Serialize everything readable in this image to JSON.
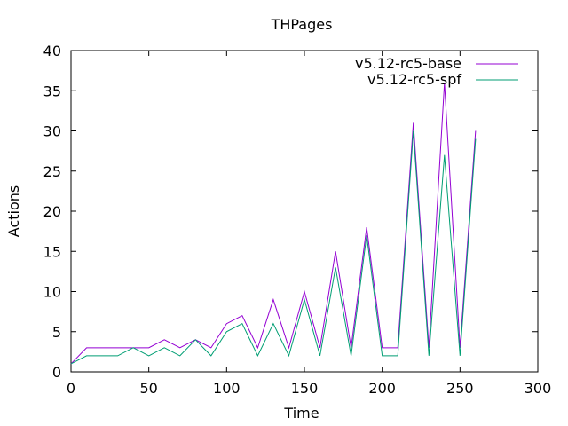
{
  "chart_data": {
    "type": "line",
    "title": "THPages",
    "xlabel": "Time",
    "ylabel": "Actions",
    "xlim": [
      0,
      300
    ],
    "ylim": [
      0,
      40
    ],
    "xticks": [
      0,
      50,
      100,
      150,
      200,
      250,
      300
    ],
    "yticks": [
      0,
      5,
      10,
      15,
      20,
      25,
      30,
      35,
      40
    ],
    "grid": false,
    "legend_position": "top-right",
    "x": [
      0,
      10,
      20,
      30,
      40,
      50,
      60,
      70,
      80,
      90,
      100,
      110,
      120,
      130,
      140,
      150,
      160,
      170,
      180,
      190,
      200,
      210,
      220,
      230,
      240,
      250,
      260
    ],
    "series": [
      {
        "name": "v5.12-rc5-base",
        "color": "#9400d3",
        "values": [
          1,
          3,
          3,
          3,
          3,
          3,
          4,
          3,
          4,
          3,
          6,
          7,
          3,
          9,
          3,
          10,
          3,
          15,
          3,
          18,
          3,
          3,
          31,
          3,
          36,
          3,
          30
        ]
      },
      {
        "name": "v5.12-rc5-spf",
        "color": "#009e73",
        "values": [
          1,
          2,
          2,
          2,
          3,
          2,
          3,
          2,
          4,
          2,
          5,
          6,
          2,
          6,
          2,
          9,
          2,
          13,
          2,
          17,
          2,
          2,
          30,
          2,
          27,
          2,
          29
        ]
      }
    ]
  }
}
